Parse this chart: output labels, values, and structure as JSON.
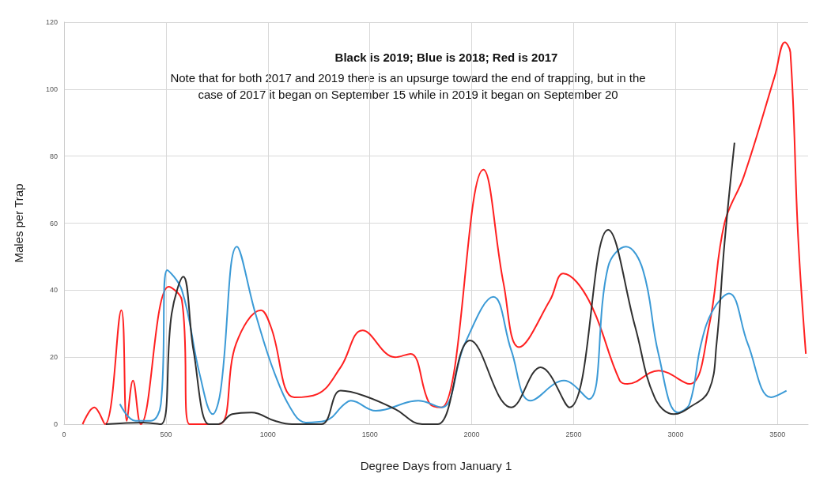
{
  "chart_data": {
    "type": "line",
    "title": "Black is 2019; Blue is 2018; Red is 2017",
    "annotations": [
      "Note that for both 2017 and 2019 there is an upsurge toward the end of trapping, but in the\ncase of 2017 it began on September 15 while in 2019 it began on September 20"
    ],
    "xlabel": "Degree Days from January 1",
    "ylabel": "Males per Trap",
    "xlim": [
      0,
      3650
    ],
    "xticks": [
      0,
      500,
      1000,
      1500,
      2000,
      2500,
      3000,
      3500
    ],
    "ylim": [
      0,
      120
    ],
    "yticks": [
      0,
      20,
      40,
      60,
      80,
      100,
      120
    ],
    "grid": true,
    "marker": "none",
    "line_style": "solid",
    "series": [
      {
        "color": "#ff2020",
        "x": [
          91,
          148,
          201,
          281,
          308,
          338,
          376,
          513,
          578,
          616,
          760,
          844,
          966,
          1015,
          1129,
          1243,
          1357,
          1464,
          1624,
          1700,
          1795,
          1852,
          2057,
          2156,
          2232,
          2384,
          2449,
          2574,
          2726,
          2764,
          2916,
          3068,
          3163,
          3240,
          3335,
          3487,
          3536,
          3563,
          3601,
          3639
        ],
        "values": [
          0,
          5,
          0,
          34,
          1,
          13,
          0,
          41,
          37,
          0,
          0,
          24,
          34,
          29,
          8,
          9,
          17,
          28,
          20,
          21,
          6,
          5,
          76,
          42,
          23,
          37,
          45,
          37,
          13,
          12,
          16,
          12,
          29,
          60,
          74,
          104,
          114,
          111,
          56,
          21
        ]
      },
      {
        "color": "#3b9ad6",
        "x": [
          274,
          350,
          426,
          475,
          506,
          578,
          665,
          730,
          768,
          848,
          939,
          1034,
          1129,
          1186,
          1281,
          1376,
          1407,
          1529,
          1738,
          1852,
          1966,
          2106,
          2194,
          2289,
          2452,
          2574,
          2669,
          2757,
          2840,
          2916,
          3011,
          3068,
          3125,
          3183,
          3262,
          3354,
          3468,
          3544
        ],
        "values": [
          6,
          1,
          1,
          6,
          46,
          40,
          15,
          3,
          10,
          53,
          33,
          15,
          3,
          0.5,
          1,
          6,
          7,
          4,
          7,
          5,
          24,
          38,
          22,
          7,
          13,
          7.5,
          47,
          53,
          46,
          21,
          3.5,
          6,
          24,
          34,
          39,
          24,
          8,
          10
        ]
      },
      {
        "color": "#303030",
        "x": [
          205,
          388,
          475,
          528,
          585,
          635,
          711,
          757,
          825,
          920,
          1034,
          1118,
          1262,
          1357,
          1471,
          1624,
          1757,
          1833,
          1992,
          2194,
          2338,
          2479,
          2669,
          2802,
          2897,
          2992,
          3068,
          3163,
          3201,
          3240,
          3289
        ],
        "values": [
          0,
          0.5,
          0,
          33,
          44,
          22,
          0,
          0,
          3,
          3.5,
          1,
          0,
          0,
          10,
          8.5,
          4.5,
          0,
          0,
          25,
          5,
          17,
          5,
          58,
          29,
          8,
          3,
          5,
          10,
          24,
          54,
          84
        ]
      }
    ]
  }
}
